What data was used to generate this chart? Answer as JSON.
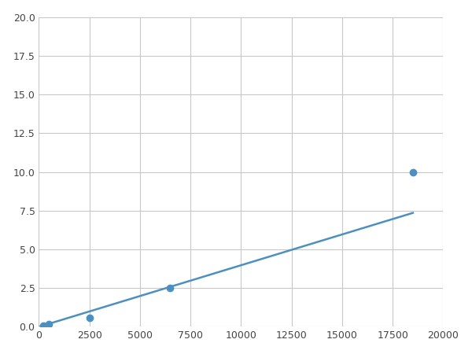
{
  "x": [
    200,
    500,
    2500,
    6500,
    18500
  ],
  "y": [
    0.1,
    0.2,
    0.6,
    2.5,
    10.0
  ],
  "line_color": "#4d90c0",
  "marker_color": "#4d90c0",
  "marker_size": 7,
  "line_width": 1.8,
  "xlim": [
    0,
    20000
  ],
  "ylim": [
    0,
    20
  ],
  "xticks": [
    0,
    2500,
    5000,
    7500,
    10000,
    12500,
    15000,
    17500,
    20000
  ],
  "yticks": [
    0.0,
    2.5,
    5.0,
    7.5,
    10.0,
    12.5,
    15.0,
    17.5,
    20.0
  ],
  "grid_color": "#c8c8c8",
  "background_color": "#ffffff",
  "figsize": [
    6.0,
    4.5
  ],
  "dpi": 100
}
